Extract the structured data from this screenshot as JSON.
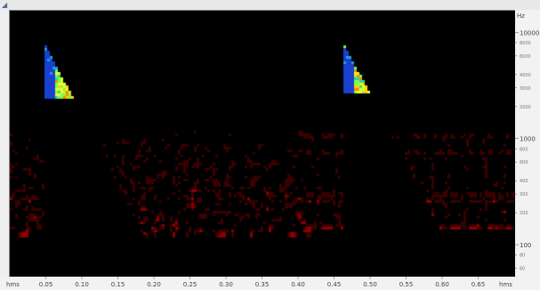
{
  "chart_data": {
    "type": "heatmap",
    "title": "",
    "x_axis": {
      "unit_label": "hms",
      "ticks": [
        {
          "label": "0.05",
          "value": 0.05
        },
        {
          "label": "0.10",
          "value": 0.1
        },
        {
          "label": "0.15",
          "value": 0.15
        },
        {
          "label": "0.20",
          "value": 0.2
        },
        {
          "label": "0.25",
          "value": 0.25
        },
        {
          "label": "0.30",
          "value": 0.3
        },
        {
          "label": "0.35",
          "value": 0.35
        },
        {
          "label": "0.40",
          "value": 0.4
        },
        {
          "label": "0.45",
          "value": 0.45
        },
        {
          "label": "0.50",
          "value": 0.5
        },
        {
          "label": "0.55",
          "value": 0.55
        },
        {
          "label": "0.60",
          "value": 0.6
        },
        {
          "label": "0.65",
          "value": 0.65
        }
      ],
      "range": [
        0.0,
        0.7
      ]
    },
    "y_axis": {
      "unit_label": "Hz",
      "scale": "log",
      "range": [
        50,
        16000
      ],
      "major_ticks": [
        {
          "label": "10000",
          "value": 10000
        },
        {
          "label": "1000",
          "value": 1000
        },
        {
          "label": "100",
          "value": 100
        }
      ],
      "minor_ticks": [
        {
          "label": "8000",
          "value": 8000
        },
        {
          "label": "6000",
          "value": 6000
        },
        {
          "label": "4000",
          "value": 4000
        },
        {
          "label": "3000",
          "value": 3000
        },
        {
          "label": "2000",
          "value": 2000
        },
        {
          "label": "800",
          "value": 800
        },
        {
          "label": "600",
          "value": 600
        },
        {
          "label": "400",
          "value": 400
        },
        {
          "label": "300",
          "value": 300
        },
        {
          "label": "200",
          "value": 200
        },
        {
          "label": "80",
          "value": 80
        },
        {
          "label": "60",
          "value": 60
        }
      ]
    },
    "colormap": [
      "#000000",
      "#3a0000",
      "#8a0000",
      "#d01010",
      "#ff3000",
      "#ff8a00",
      "#ffd200",
      "#e8ff30",
      "#7cff4a",
      "#28d8a0",
      "#1aa0e0",
      "#1a40d0"
    ],
    "events": [
      {
        "onset": 0.048,
        "peak_hz": 3000,
        "max_hz": 7800,
        "decay": 0.085
      },
      {
        "onset": 0.463,
        "peak_hz": 3000,
        "max_hz": 7800,
        "decay": 0.085
      }
    ]
  }
}
